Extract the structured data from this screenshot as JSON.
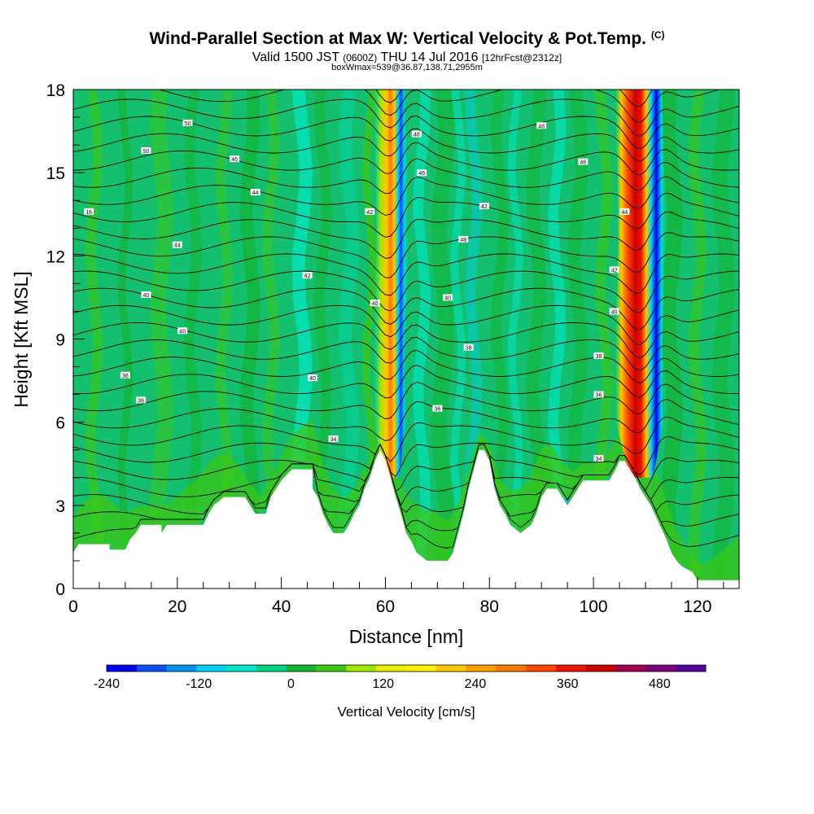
{
  "header": {
    "title": "Wind-Parallel Section at Max W: Vertical Velocity & Pot.Temp.",
    "copyright": "(C)",
    "valid_prefix": "Valid 1500 JST",
    "valid_zulu": "(0600Z)",
    "valid_date": "THU 14 Jul 2016",
    "forecast_info": "[12hrFcst@2312z]",
    "box_info": "boxWmax=539@36.87,138.71,2955m"
  },
  "chart_data": {
    "type": "heatmap",
    "xlabel": "Distance [nm]",
    "ylabel": "Height [Kft MSL]",
    "xlim": [
      0,
      128
    ],
    "ylim": [
      0,
      18
    ],
    "x_ticks": [
      0,
      20,
      40,
      60,
      80,
      100,
      120
    ],
    "y_ticks": [
      0,
      3,
      6,
      9,
      12,
      15,
      18
    ],
    "colorbar": {
      "title": "Vertical Velocity [cm/s]",
      "min": -240,
      "max": 540,
      "step": 30,
      "tick_values": [
        -240,
        -120,
        0,
        120,
        240,
        360,
        480
      ],
      "colors": [
        "#0000f0",
        "#0a50f5",
        "#0096f0",
        "#00d2f5",
        "#00e8c8",
        "#00d27d",
        "#14b432",
        "#3cc814",
        "#a0e600",
        "#e6f000",
        "#fff000",
        "#ffc800",
        "#ffa000",
        "#ff7800",
        "#ff4600",
        "#f01400",
        "#c80000",
        "#a00050",
        "#780078",
        "#5a00a0"
      ]
    },
    "updraft_cores": [
      {
        "x_nm": 61,
        "base_kft": 4,
        "top_kft": 18,
        "max_cm_s": 180
      },
      {
        "x_nm": 109,
        "base_kft": 4,
        "top_kft": 18,
        "max_cm_s": 539
      }
    ],
    "terrain_kft": [
      [
        0,
        1.3
      ],
      [
        1,
        1.6
      ],
      [
        7,
        1.6
      ],
      [
        7,
        1.4
      ],
      [
        10,
        1.4
      ],
      [
        11,
        1.8
      ],
      [
        12,
        2.0
      ],
      [
        13,
        2.3
      ],
      [
        17,
        2.3
      ],
      [
        17,
        2.0
      ],
      [
        18,
        2.3
      ],
      [
        25,
        2.3
      ],
      [
        26,
        2.7
      ],
      [
        27,
        3.0
      ],
      [
        29,
        3.3
      ],
      [
        33,
        3.3
      ],
      [
        34,
        3.0
      ],
      [
        35,
        2.7
      ],
      [
        37,
        2.7
      ],
      [
        38,
        3.3
      ],
      [
        39,
        3.6
      ],
      [
        40,
        3.9
      ],
      [
        42,
        4.3
      ],
      [
        46,
        4.3
      ],
      [
        46,
        3.6
      ],
      [
        47,
        3.3
      ],
      [
        48,
        2.7
      ],
      [
        49,
        2.3
      ],
      [
        50,
        2.0
      ],
      [
        52,
        2.0
      ],
      [
        53,
        2.3
      ],
      [
        54,
        2.7
      ],
      [
        55,
        3.0
      ],
      [
        56,
        3.6
      ],
      [
        57,
        4.0
      ],
      [
        58,
        4.6
      ],
      [
        59,
        5.0
      ],
      [
        60,
        4.6
      ],
      [
        61,
        4.0
      ],
      [
        62,
        3.3
      ],
      [
        63,
        2.7
      ],
      [
        64,
        2.0
      ],
      [
        65,
        1.7
      ],
      [
        66,
        1.3
      ],
      [
        68,
        1.0
      ],
      [
        72,
        1.0
      ],
      [
        73,
        1.3
      ],
      [
        74,
        2.0
      ],
      [
        75,
        2.7
      ],
      [
        76,
        3.6
      ],
      [
        77,
        4.3
      ],
      [
        78,
        5.0
      ],
      [
        79,
        5.0
      ],
      [
        80,
        4.6
      ],
      [
        81,
        3.6
      ],
      [
        82,
        3.0
      ],
      [
        83,
        2.7
      ],
      [
        84,
        2.3
      ],
      [
        86,
        2.0
      ],
      [
        88,
        2.3
      ],
      [
        89,
        2.7
      ],
      [
        90,
        3.3
      ],
      [
        91,
        3.6
      ],
      [
        93,
        3.6
      ],
      [
        94,
        3.3
      ],
      [
        95,
        3.0
      ],
      [
        96,
        3.3
      ],
      [
        97,
        3.6
      ],
      [
        98,
        3.9
      ],
      [
        103,
        3.9
      ],
      [
        104,
        4.2
      ],
      [
        105,
        4.6
      ],
      [
        106,
        4.6
      ],
      [
        107,
        4.3
      ],
      [
        108,
        4.0
      ],
      [
        109,
        3.6
      ],
      [
        110,
        3.3
      ],
      [
        111,
        3.0
      ],
      [
        112,
        2.6
      ],
      [
        113,
        2.2
      ],
      [
        114,
        1.8
      ],
      [
        115,
        1.3
      ],
      [
        116,
        1.0
      ],
      [
        117,
        0.8
      ],
      [
        119,
        0.6
      ],
      [
        120,
        0.3
      ],
      [
        128,
        0.3
      ]
    ],
    "isentropes": {
      "count": 28,
      "labels": [
        {
          "x_nm": 3,
          "y_kft": 13.6,
          "text": "16"
        },
        {
          "x_nm": 14,
          "y_kft": 15.8,
          "text": "50"
        },
        {
          "x_nm": 22,
          "y_kft": 16.8,
          "text": "50"
        },
        {
          "x_nm": 31,
          "y_kft": 15.5,
          "text": "46"
        },
        {
          "x_nm": 35,
          "y_kft": 14.3,
          "text": "44"
        },
        {
          "x_nm": 20,
          "y_kft": 12.4,
          "text": "44"
        },
        {
          "x_nm": 14,
          "y_kft": 10.6,
          "text": "40"
        },
        {
          "x_nm": 21,
          "y_kft": 9.3,
          "text": "40"
        },
        {
          "x_nm": 10,
          "y_kft": 7.7,
          "text": "36"
        },
        {
          "x_nm": 13,
          "y_kft": 6.8,
          "text": "36"
        },
        {
          "x_nm": 46,
          "y_kft": 7.6,
          "text": "40"
        },
        {
          "x_nm": 45,
          "y_kft": 11.3,
          "text": "42"
        },
        {
          "x_nm": 57,
          "y_kft": 13.6,
          "text": "42"
        },
        {
          "x_nm": 58,
          "y_kft": 10.3,
          "text": "40"
        },
        {
          "x_nm": 66,
          "y_kft": 16.4,
          "text": "48"
        },
        {
          "x_nm": 67,
          "y_kft": 15.0,
          "text": "46"
        },
        {
          "x_nm": 75,
          "y_kft": 12.6,
          "text": "48"
        },
        {
          "x_nm": 72,
          "y_kft": 10.5,
          "text": "40"
        },
        {
          "x_nm": 76,
          "y_kft": 8.7,
          "text": "38"
        },
        {
          "x_nm": 70,
          "y_kft": 6.5,
          "text": "36"
        },
        {
          "x_nm": 79,
          "y_kft": 13.8,
          "text": "42"
        },
        {
          "x_nm": 90,
          "y_kft": 16.7,
          "text": "48"
        },
        {
          "x_nm": 98,
          "y_kft": 15.4,
          "text": "46"
        },
        {
          "x_nm": 106,
          "y_kft": 13.6,
          "text": "44"
        },
        {
          "x_nm": 104,
          "y_kft": 11.5,
          "text": "42"
        },
        {
          "x_nm": 104,
          "y_kft": 10.0,
          "text": "40"
        },
        {
          "x_nm": 101,
          "y_kft": 8.4,
          "text": "38"
        },
        {
          "x_nm": 101,
          "y_kft": 7.0,
          "text": "36"
        },
        {
          "x_nm": 101,
          "y_kft": 4.7,
          "text": "34"
        },
        {
          "x_nm": 50,
          "y_kft": 5.4,
          "text": "34"
        }
      ]
    }
  }
}
